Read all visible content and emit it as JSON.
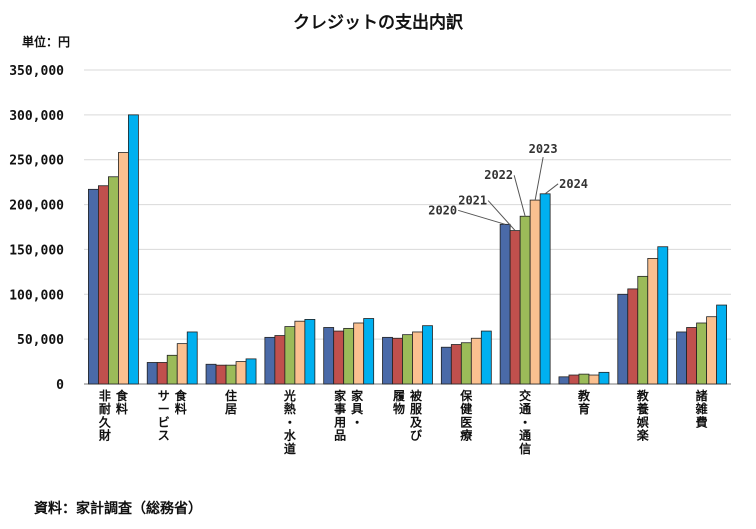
{
  "chart_data": {
    "type": "bar",
    "title": "クレジットの支出内訳",
    "ylabel": "単位：円",
    "source": "資料：家計調査（総務省）",
    "ylim": [
      0,
      350000
    ],
    "yticks": [
      0,
      50000,
      100000,
      150000,
      200000,
      250000,
      300000,
      350000
    ],
    "ytick_labels": [
      "0",
      "50,000",
      "100,000",
      "150,000",
      "200,000",
      "250,000",
      "300,000",
      "350,000"
    ],
    "grid": true,
    "categories": [
      [
        "食料",
        "非耐久財"
      ],
      [
        "食料",
        "サービス"
      ],
      [
        "住居"
      ],
      [
        "光熱・水道"
      ],
      [
        "家具・",
        "家事用品"
      ],
      [
        "被服及び",
        "履物"
      ],
      [
        "保健医療"
      ],
      [
        "交通・通信"
      ],
      [
        "教育"
      ],
      [
        "教養娯楽"
      ],
      [
        "諸雑費"
      ]
    ],
    "series": [
      {
        "name": "2020",
        "color": "#4A6AA8",
        "values": [
          217000,
          24000,
          22000,
          52000,
          63000,
          52000,
          41000,
          178000,
          8000,
          100000,
          58000
        ]
      },
      {
        "name": "2021",
        "color": "#C0504D",
        "values": [
          221000,
          24000,
          21000,
          54000,
          59000,
          51000,
          44000,
          171000,
          10000,
          106000,
          63000
        ]
      },
      {
        "name": "2022",
        "color": "#9BBB59",
        "values": [
          231000,
          32000,
          21000,
          64000,
          62000,
          55000,
          46000,
          187000,
          11000,
          120000,
          68000
        ]
      },
      {
        "name": "2023",
        "color": "#FAC090",
        "values": [
          258000,
          45000,
          25000,
          70000,
          68000,
          58000,
          51000,
          205000,
          10000,
          140000,
          75000
        ]
      },
      {
        "name": "2024",
        "color": "#00B0F0",
        "values": [
          300000,
          58000,
          28000,
          72000,
          73000,
          65000,
          59000,
          212000,
          13000,
          153000,
          88000
        ]
      }
    ],
    "annotations": [
      {
        "text": "2020",
        "category_index": 7,
        "series_index": 0
      },
      {
        "text": "2021",
        "category_index": 7,
        "series_index": 1
      },
      {
        "text": "2022",
        "category_index": 7,
        "series_index": 2
      },
      {
        "text": "2023",
        "category_index": 7,
        "series_index": 3
      },
      {
        "text": "2024",
        "category_index": 7,
        "series_index": 4
      }
    ]
  }
}
